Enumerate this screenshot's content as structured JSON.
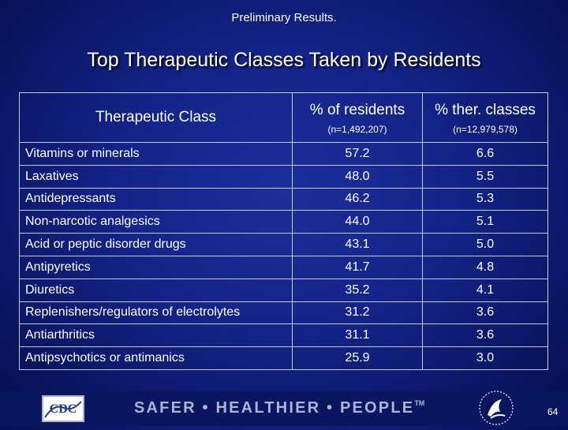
{
  "header_label": "Preliminary Results.",
  "title": "Top Therapeutic Classes Taken by Residents",
  "table": {
    "headers": {
      "class": "Therapeutic Class",
      "residents": "% of residents",
      "residents_n": "(n=1,492,207)",
      "ther": "% ther. classes",
      "ther_n": "(n=12,979,578)"
    },
    "rows": [
      {
        "class": "Vitamins or minerals",
        "residents": "57.2",
        "ther": "6.6"
      },
      {
        "class": "Laxatives",
        "residents": "48.0",
        "ther": "5.5"
      },
      {
        "class": "Antidepressants",
        "residents": "46.2",
        "ther": "5.3"
      },
      {
        "class": "Non-narcotic analgesics",
        "residents": "44.0",
        "ther": "5.1"
      },
      {
        "class": "Acid or peptic disorder drugs",
        "residents": "43.1",
        "ther": "5.0"
      },
      {
        "class": "Antipyretics",
        "residents": "41.7",
        "ther": "4.8"
      },
      {
        "class": "Diuretics",
        "residents": "35.2",
        "ther": "4.1"
      },
      {
        "class": "Replenishers/regulators of electrolytes",
        "residents": "31.2",
        "ther": "3.6"
      },
      {
        "class": "Antiarthritics",
        "residents": "31.1",
        "ther": "3.6"
      },
      {
        "class": "Antipsychotics or antimanics",
        "residents": "25.9",
        "ther": "3.0"
      }
    ]
  },
  "footer": {
    "logo_text": "CDC",
    "tagline": "SAFER • HEALTHIER • PEOPLE",
    "tagline_mark": "TM",
    "page_number": "64"
  },
  "colors": {
    "background": "#14248a",
    "footer_band": "#0a1660",
    "tagline": "#aeb3d4",
    "logo_blue": "#1e3a8a"
  },
  "icons": [
    "cdc-logo",
    "hhs-seal-icon"
  ]
}
